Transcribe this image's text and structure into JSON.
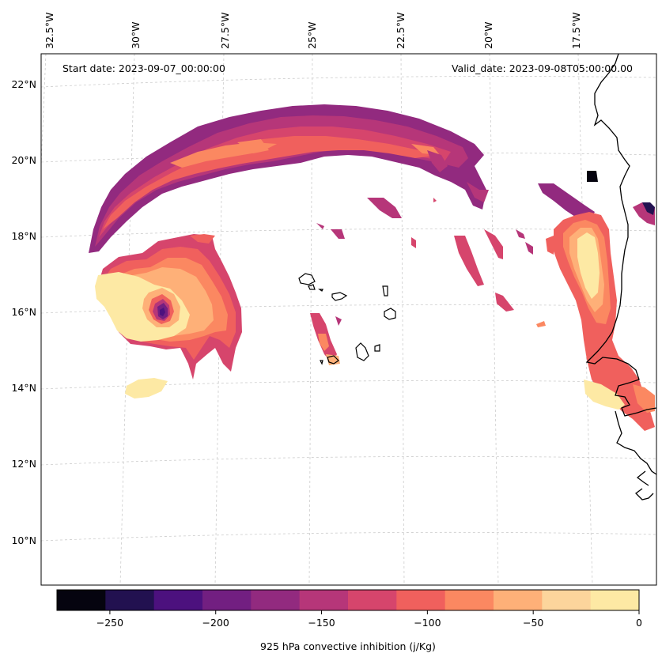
{
  "header": {
    "start_date": "Start date: 2023-09-07_00:00:00",
    "valid_date": "Valid_date: 2023-09-08T05:00:00.00"
  },
  "map": {
    "longitude_labels": [
      "32.5°W",
      "30°W",
      "27.5°W",
      "25°W",
      "22.5°W",
      "20°W",
      "17.5°W"
    ],
    "latitude_labels": [
      "22°N",
      "20°N",
      "18°N",
      "16°N",
      "14°N",
      "12°N",
      "10°N"
    ],
    "features": [
      "hurricane-core-field",
      "northern-arc-band",
      "west-african-coast-band",
      "cape-verde-islands",
      "african-coastline"
    ]
  },
  "colorbar": {
    "label": "925 hPa convective inhibition (j/Kg)",
    "ticks": [
      "−250",
      "−200",
      "−150",
      "−100",
      "−50",
      "0"
    ],
    "tick_values": [
      -250,
      -200,
      -150,
      -100,
      -50,
      0
    ],
    "range": [
      -275,
      0
    ],
    "colors": [
      "#05040f",
      "#221150",
      "#4c117e",
      "#721f81",
      "#922a7f",
      "#b63679",
      "#d6456c",
      "#f0605d",
      "#fb8861",
      "#feb078",
      "#fcd59c",
      "#fde9a4"
    ]
  },
  "palette": {
    "c1": "#fde9a4",
    "c2": "#feb078",
    "c3": "#fb8861",
    "c4": "#f0605d",
    "c5": "#d6456c",
    "c6": "#b63679",
    "c7": "#922a7f",
    "c8": "#721f81",
    "c9": "#4c117e",
    "c10": "#221150",
    "c11": "#05040f"
  }
}
